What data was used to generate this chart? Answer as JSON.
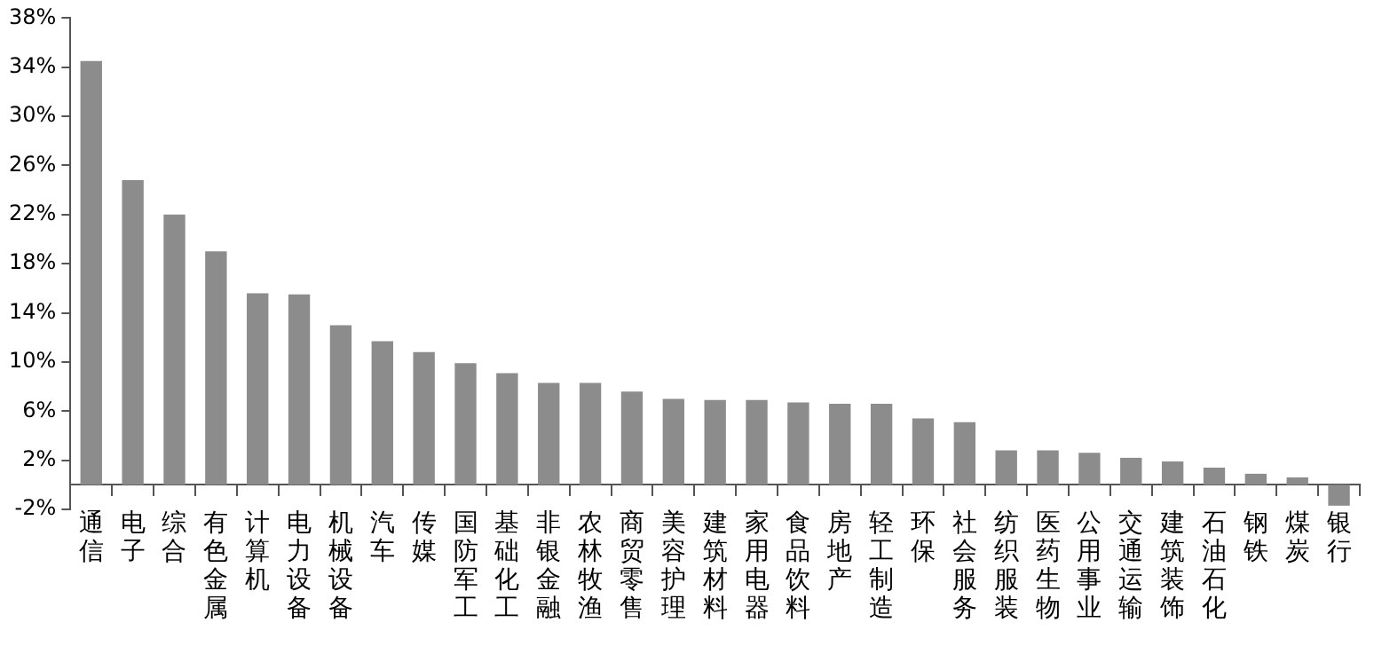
{
  "chart_data": {
    "type": "bar",
    "categories": [
      "通信",
      "电子",
      "综合",
      "有色金属",
      "计算机",
      "电力设备",
      "机械设备",
      "汽车",
      "传媒",
      "国防军工",
      "基础化工",
      "非银金融",
      "农林牧渔",
      "商贸零售",
      "美容护理",
      "建筑材料",
      "家用电器",
      "食品饮料",
      "房地产",
      "轻工制造",
      "环保",
      "社会服务",
      "纺织服装",
      "医药生物",
      "公用事业",
      "交通运输",
      "建筑装饰",
      "石油石化",
      "钢铁",
      "煤炭",
      "银行"
    ],
    "values": [
      34.5,
      24.8,
      22.0,
      19.0,
      15.6,
      15.5,
      13.0,
      11.7,
      10.8,
      9.9,
      9.1,
      8.3,
      8.3,
      7.6,
      7.0,
      6.9,
      6.9,
      6.7,
      6.6,
      6.6,
      5.4,
      5.1,
      2.8,
      2.8,
      2.6,
      2.2,
      1.9,
      1.4,
      0.9,
      0.6,
      -1.7
    ],
    "color": "#8c8c8c",
    "ylim": [
      -2,
      38
    ],
    "yticks": [
      {
        "value": -2,
        "label": "-2%"
      },
      {
        "value": 2,
        "label": "2%"
      },
      {
        "value": 6,
        "label": "6%"
      },
      {
        "value": 10,
        "label": "10%"
      },
      {
        "value": 14,
        "label": "14%"
      },
      {
        "value": 18,
        "label": "18%"
      },
      {
        "value": 22,
        "label": "22%"
      },
      {
        "value": 26,
        "label": "26%"
      },
      {
        "value": 30,
        "label": "30%"
      },
      {
        "value": 34,
        "label": "34%"
      },
      {
        "value": 38,
        "label": "38%"
      }
    ],
    "grid": false,
    "legend": false
  }
}
